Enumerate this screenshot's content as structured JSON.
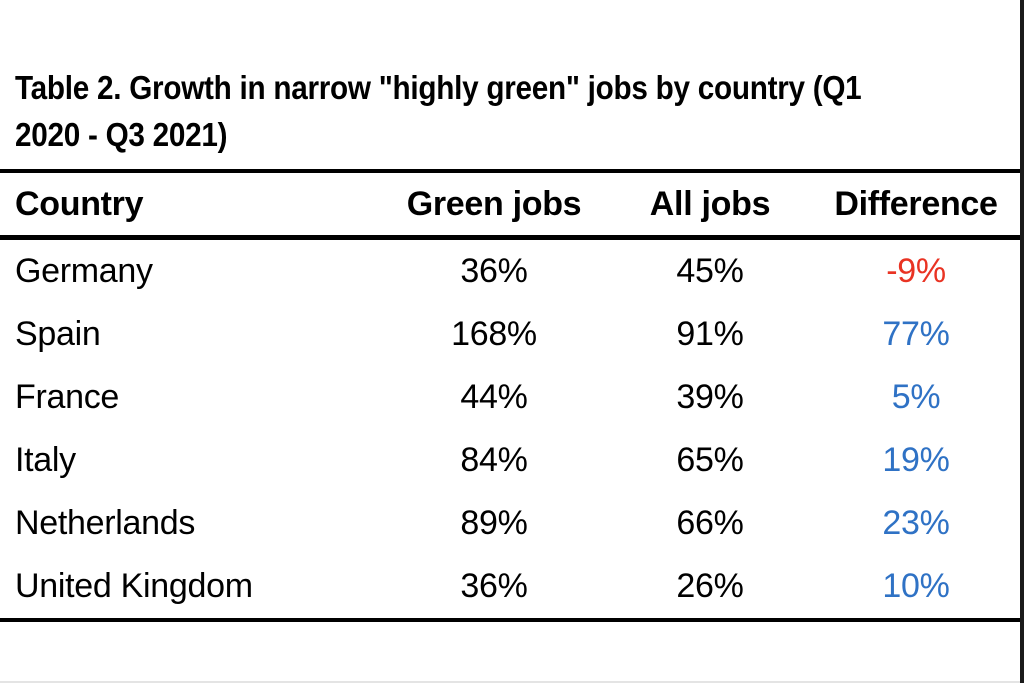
{
  "title": {
    "line1": "Table 2. Growth in narrow \"highly green\" jobs by country (Q1",
    "line2": "2020 - Q3 2021)"
  },
  "table": {
    "columns": [
      "Country",
      "Green jobs",
      "All jobs",
      "Difference"
    ],
    "rows": [
      {
        "country": "Germany",
        "green_jobs": "36%",
        "all_jobs": "45%",
        "difference": "-9%",
        "trend": "negative"
      },
      {
        "country": "Spain",
        "green_jobs": "168%",
        "all_jobs": "91%",
        "difference": "77%",
        "trend": "positive"
      },
      {
        "country": "France",
        "green_jobs": "44%",
        "all_jobs": "39%",
        "difference": "5%",
        "trend": "positive"
      },
      {
        "country": "Italy",
        "green_jobs": "84%",
        "all_jobs": "65%",
        "difference": "19%",
        "trend": "positive"
      },
      {
        "country": "Netherlands",
        "green_jobs": "89%",
        "all_jobs": "66%",
        "difference": "23%",
        "trend": "positive"
      },
      {
        "country": "United Kingdom",
        "green_jobs": "36%",
        "all_jobs": "26%",
        "difference": "10%",
        "trend": "positive"
      }
    ]
  },
  "colors": {
    "text": "#000000",
    "rule": "#000000",
    "negative": "#e93323",
    "positive": "#2f72c5"
  },
  "chart_data": {
    "type": "table",
    "title": "Table 2. Growth in narrow \"highly green\" jobs by country (Q1 2020 - Q3 2021)",
    "columns": [
      "Country",
      "Green jobs",
      "All jobs",
      "Difference"
    ],
    "rows": [
      [
        "Germany",
        "36%",
        "45%",
        "-9%"
      ],
      [
        "Spain",
        "168%",
        "91%",
        "77%"
      ],
      [
        "France",
        "44%",
        "39%",
        "5%"
      ],
      [
        "Italy",
        "84%",
        "65%",
        "19%"
      ],
      [
        "Netherlands",
        "89%",
        "66%",
        "23%"
      ],
      [
        "United Kingdom",
        "36%",
        "26%",
        "10%"
      ]
    ],
    "notes": "Difference column colored red when negative, blue when positive"
  }
}
